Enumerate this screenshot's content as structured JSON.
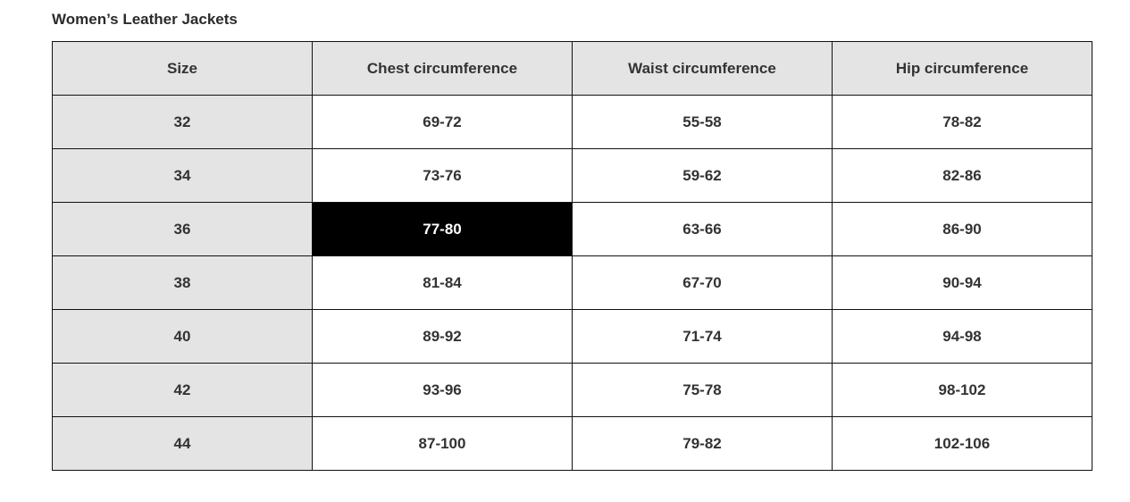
{
  "title": "Women’s Leather Jackets",
  "table": {
    "headers": [
      "Size",
      "Chest circumference",
      "Waist circumference",
      "Hip circumference"
    ],
    "rows": [
      [
        "32",
        "69-72",
        "55-58",
        "78-82"
      ],
      [
        "34",
        "73-76",
        "59-62",
        "82-86"
      ],
      [
        "36",
        "77-80",
        "63-66",
        "86-90"
      ],
      [
        "38",
        "81-84",
        "67-70",
        "90-94"
      ],
      [
        "40",
        "89-92",
        "71-74",
        "94-98"
      ],
      [
        "42",
        "93-96",
        "75-78",
        "98-102"
      ],
      [
        "44",
        "87-100",
        "79-82",
        "102-106"
      ]
    ],
    "highlighted_cell": {
      "row": 2,
      "col": 1
    }
  },
  "colors": {
    "header_bg": "#e4e4e4",
    "size_col_bg": "#e4e4e4",
    "highlight_bg": "#000000",
    "highlight_text": "#ffffff",
    "border": "#111111"
  }
}
